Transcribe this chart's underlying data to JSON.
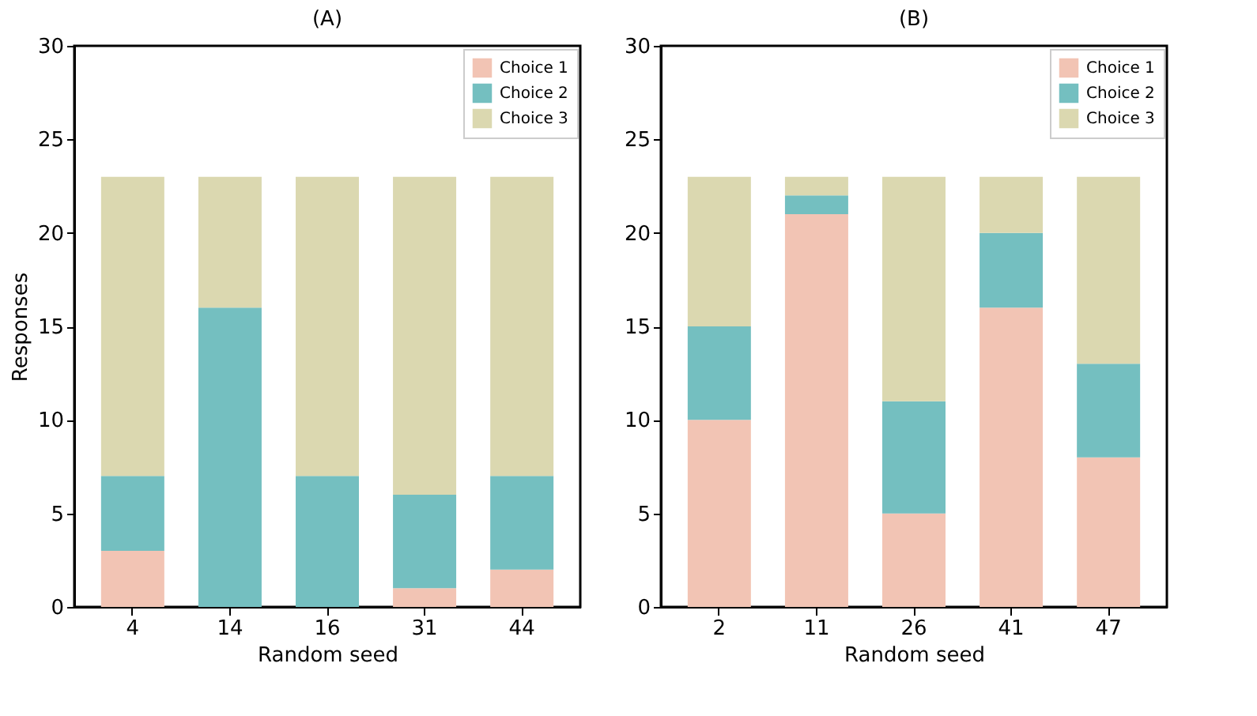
{
  "chart_data": [
    {
      "type": "bar",
      "title": "(A)",
      "xlabel": "Random seed",
      "ylabel": "Responses",
      "stacked": true,
      "categories": [
        "4",
        "14",
        "16",
        "31",
        "44"
      ],
      "series": [
        {
          "name": "Choice 1",
          "color": "#f2c4b4",
          "values": [
            3,
            0,
            0,
            1,
            2
          ]
        },
        {
          "name": "Choice 2",
          "color": "#74bfc0",
          "values": [
            4,
            16,
            7,
            5,
            5
          ]
        },
        {
          "name": "Choice 3",
          "color": "#dbd8b0",
          "values": [
            16,
            7,
            16,
            17,
            16
          ]
        }
      ],
      "ylim": [
        0,
        30
      ],
      "yticks": [
        0,
        5,
        10,
        15,
        20,
        25,
        30
      ],
      "legend": "top right",
      "grid": false
    },
    {
      "type": "bar",
      "title": "(B)",
      "xlabel": "Random seed",
      "stacked": true,
      "categories": [
        "2",
        "11",
        "26",
        "41",
        "47"
      ],
      "series": [
        {
          "name": "Choice 1",
          "color": "#f2c4b4",
          "values": [
            10,
            21,
            5,
            16,
            8
          ]
        },
        {
          "name": "Choice 2",
          "color": "#74bfc0",
          "values": [
            5,
            1,
            6,
            4,
            5
          ]
        },
        {
          "name": "Choice 3",
          "color": "#dbd8b0",
          "values": [
            8,
            1,
            12,
            3,
            10
          ]
        }
      ],
      "ylim": [
        0,
        30
      ],
      "yticks": [
        0,
        5,
        10,
        15,
        20,
        25,
        30
      ],
      "legend": "top right",
      "grid": false
    }
  ]
}
